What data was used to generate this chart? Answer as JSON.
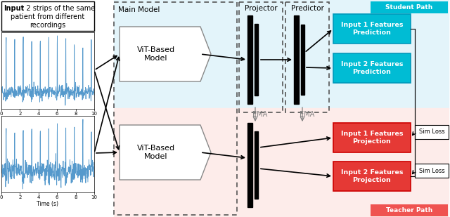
{
  "student_bg": "#E3F4FA",
  "teacher_bg": "#FDECEA",
  "blue_box_color": "#00BCD4",
  "red_box_color": "#E53935",
  "student_label_bg": "#00BCD4",
  "teacher_label_bg": "#EF5350",
  "input1_pred_label": "Input 1 Features\nPrediction",
  "input2_pred_label": "Input 2 Features\nPrediction",
  "input1_proj_label": "Input 1 Features\nProjection",
  "input2_proj_label": "Input 2 Features\nProjection",
  "main_model_label": "Main Model",
  "projector_label": "Projector",
  "predictor_label": "Predictor",
  "student_path_label": "Student Path",
  "teacher_path_label": "Teacher Path",
  "ema_label": "EMA",
  "vit_label": "ViT-Based\nModel",
  "sim_loss1": "Sim Loss",
  "sim_loss2": "Sim Loss",
  "ecg_color": "#5599CC",
  "vit_edge_color": "#888888",
  "dashed_edge_color": "#555555"
}
